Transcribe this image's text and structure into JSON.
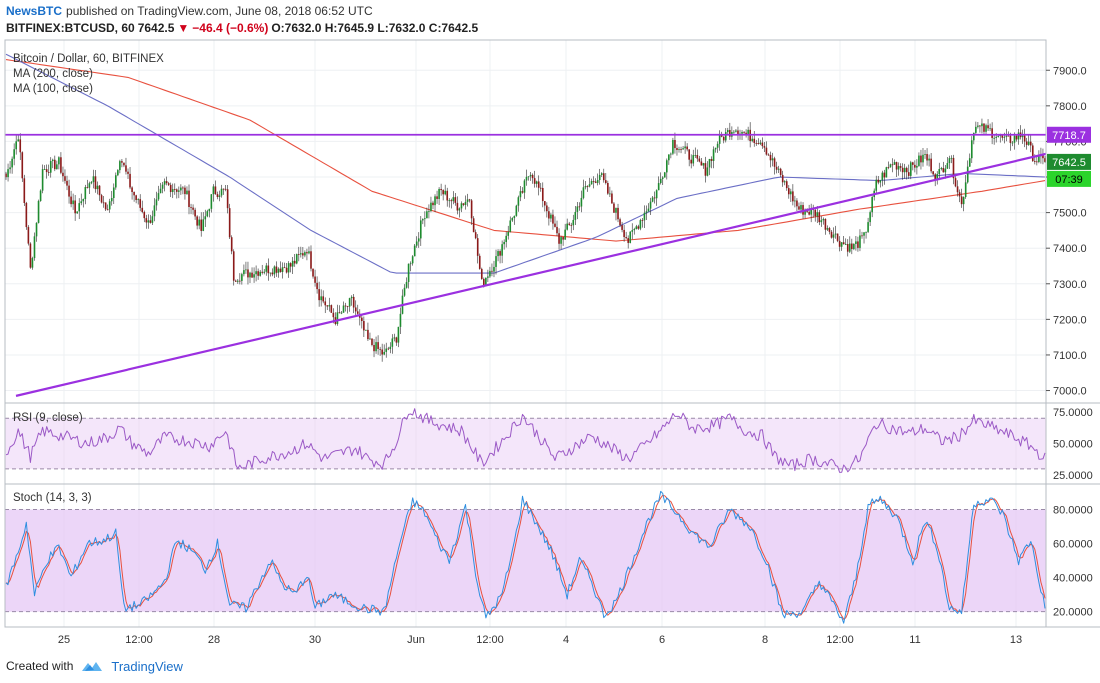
{
  "header": {
    "publisher": "NewsBTC",
    "published_text": "published on TradingView.com, June 08, 2018 06:52 UTC",
    "symbol": "BITFINEX:BTCUSD, 60",
    "last": "7642.5",
    "arrow": "▼",
    "change": "−46.4 (−0.6%)",
    "ohlc": "O:7632.0 H:7645.9 L:7632.0 C:7642.5"
  },
  "legend": {
    "main": "Bitcoin / Dollar, 60, BITFINEX",
    "ma200": "MA (200, close)",
    "ma100": "MA (100, close)",
    "rsi": "RSI (9, close)",
    "stoch": "Stoch (14, 3, 3)"
  },
  "price_tags": {
    "resistance": "7718.7",
    "last": "7642.5",
    "countdown": "07:39"
  },
  "footer": {
    "created": "Created with",
    "brand": "TradingView"
  },
  "colors": {
    "bull": "#1e8b2f",
    "bear": "#8b1a1a",
    "ma200": "#e8513f",
    "ma100": "#6b6fc6",
    "trend": "#9b30e0",
    "rsi": "#9b59c6",
    "stoch_k": "#2f8fe0",
    "stoch_d": "#e8513f",
    "band": "#e6c8f5"
  },
  "chart_data": {
    "type": "candlestick",
    "timeframe": "60",
    "x_ticks": [
      "25",
      "12:00",
      "28",
      "30",
      "Jun",
      "12:00",
      "4",
      "6",
      "8",
      "12:00",
      "11",
      "13"
    ],
    "price_axis": {
      "ticks": [
        7000,
        7100,
        7200,
        7300,
        7400,
        7500,
        7600,
        7700,
        7800,
        7900
      ],
      "ylim": [
        6965,
        7985
      ]
    },
    "resistance_level": 7718.7,
    "trend_line": {
      "from_price": 6985,
      "to_price": 7665
    },
    "anchors_close": [
      [
        0,
        7600
      ],
      [
        6,
        7720
      ],
      [
        12,
        7340
      ],
      [
        18,
        7620
      ],
      [
        26,
        7640
      ],
      [
        34,
        7500
      ],
      [
        42,
        7600
      ],
      [
        50,
        7500
      ],
      [
        56,
        7660
      ],
      [
        62,
        7560
      ],
      [
        70,
        7470
      ],
      [
        78,
        7580
      ],
      [
        88,
        7560
      ],
      [
        96,
        7450
      ],
      [
        102,
        7560
      ],
      [
        108,
        7560
      ],
      [
        112,
        7320
      ],
      [
        126,
        7340
      ],
      [
        140,
        7350
      ],
      [
        148,
        7400
      ],
      [
        154,
        7270
      ],
      [
        162,
        7200
      ],
      [
        170,
        7250
      ],
      [
        178,
        7140
      ],
      [
        186,
        7100
      ],
      [
        192,
        7150
      ],
      [
        198,
        7350
      ],
      [
        206,
        7500
      ],
      [
        214,
        7560
      ],
      [
        222,
        7520
      ],
      [
        228,
        7540
      ],
      [
        234,
        7300
      ],
      [
        242,
        7380
      ],
      [
        250,
        7500
      ],
      [
        258,
        7620
      ],
      [
        264,
        7540
      ],
      [
        272,
        7420
      ],
      [
        278,
        7470
      ],
      [
        284,
        7560
      ],
      [
        292,
        7610
      ],
      [
        300,
        7500
      ],
      [
        306,
        7420
      ],
      [
        312,
        7480
      ],
      [
        320,
        7560
      ],
      [
        328,
        7700
      ],
      [
        336,
        7660
      ],
      [
        344,
        7620
      ],
      [
        350,
        7700
      ],
      [
        358,
        7740
      ],
      [
        364,
        7720
      ],
      [
        372,
        7700
      ],
      [
        378,
        7630
      ],
      [
        384,
        7570
      ],
      [
        390,
        7510
      ],
      [
        398,
        7500
      ],
      [
        404,
        7460
      ],
      [
        410,
        7420
      ],
      [
        416,
        7400
      ],
      [
        422,
        7430
      ],
      [
        428,
        7580
      ],
      [
        436,
        7640
      ],
      [
        444,
        7620
      ],
      [
        452,
        7660
      ],
      [
        458,
        7600
      ],
      [
        464,
        7660
      ],
      [
        470,
        7520
      ],
      [
        476,
        7740
      ],
      [
        484,
        7730
      ],
      [
        492,
        7700
      ],
      [
        500,
        7720
      ],
      [
        506,
        7650
      ],
      [
        511,
        7642.5
      ]
    ],
    "ma200_path": [
      [
        0,
        7930
      ],
      [
        60,
        7880
      ],
      [
        120,
        7760
      ],
      [
        180,
        7560
      ],
      [
        240,
        7450
      ],
      [
        300,
        7420
      ],
      [
        360,
        7450
      ],
      [
        420,
        7510
      ],
      [
        480,
        7560
      ],
      [
        511,
        7590
      ]
    ],
    "ma100_path": [
      [
        0,
        7945
      ],
      [
        50,
        7800
      ],
      [
        110,
        7600
      ],
      [
        150,
        7450
      ],
      [
        190,
        7330
      ],
      [
        240,
        7330
      ],
      [
        290,
        7430
      ],
      [
        330,
        7540
      ],
      [
        380,
        7600
      ],
      [
        430,
        7590
      ],
      [
        470,
        7610
      ],
      [
        511,
        7600
      ]
    ],
    "rsi": {
      "ticks": [
        25,
        50,
        75
      ],
      "ylim": [
        18,
        82
      ],
      "band": [
        30,
        70
      ],
      "anchors": [
        [
          0,
          42
        ],
        [
          6,
          60
        ],
        [
          12,
          40
        ],
        [
          18,
          60
        ],
        [
          30,
          55
        ],
        [
          40,
          50
        ],
        [
          50,
          55
        ],
        [
          56,
          62
        ],
        [
          62,
          50
        ],
        [
          70,
          42
        ],
        [
          78,
          55
        ],
        [
          90,
          52
        ],
        [
          100,
          48
        ],
        [
          108,
          60
        ],
        [
          114,
          30
        ],
        [
          126,
          38
        ],
        [
          140,
          44
        ],
        [
          148,
          50
        ],
        [
          156,
          38
        ],
        [
          164,
          42
        ],
        [
          172,
          46
        ],
        [
          178,
          38
        ],
        [
          186,
          34
        ],
        [
          192,
          52
        ],
        [
          198,
          78
        ],
        [
          208,
          68
        ],
        [
          216,
          64
        ],
        [
          224,
          60
        ],
        [
          234,
          34
        ],
        [
          244,
          52
        ],
        [
          254,
          72
        ],
        [
          262,
          56
        ],
        [
          270,
          38
        ],
        [
          280,
          48
        ],
        [
          288,
          56
        ],
        [
          296,
          48
        ],
        [
          306,
          38
        ],
        [
          314,
          48
        ],
        [
          322,
          60
        ],
        [
          330,
          74
        ],
        [
          338,
          62
        ],
        [
          348,
          64
        ],
        [
          356,
          70
        ],
        [
          364,
          60
        ],
        [
          372,
          56
        ],
        [
          378,
          40
        ],
        [
          386,
          32
        ],
        [
          396,
          38
        ],
        [
          404,
          34
        ],
        [
          412,
          30
        ],
        [
          420,
          38
        ],
        [
          428,
          66
        ],
        [
          436,
          62
        ],
        [
          444,
          58
        ],
        [
          452,
          62
        ],
        [
          460,
          52
        ],
        [
          468,
          55
        ],
        [
          476,
          68
        ],
        [
          486,
          62
        ],
        [
          496,
          55
        ],
        [
          504,
          48
        ],
        [
          511,
          38
        ]
      ]
    },
    "stoch": {
      "ticks": [
        20,
        40,
        60,
        80
      ],
      "ylim": [
        11,
        95
      ],
      "band": [
        20,
        80
      ],
      "anchors": [
        [
          0,
          35
        ],
        [
          6,
          55
        ],
        [
          10,
          72
        ],
        [
          14,
          30
        ],
        [
          20,
          50
        ],
        [
          26,
          58
        ],
        [
          32,
          40
        ],
        [
          40,
          60
        ],
        [
          48,
          62
        ],
        [
          54,
          66
        ],
        [
          58,
          22
        ],
        [
          66,
          24
        ],
        [
          72,
          30
        ],
        [
          78,
          38
        ],
        [
          84,
          62
        ],
        [
          92,
          55
        ],
        [
          98,
          45
        ],
        [
          104,
          60
        ],
        [
          110,
          24
        ],
        [
          118,
          22
        ],
        [
          124,
          36
        ],
        [
          130,
          50
        ],
        [
          136,
          36
        ],
        [
          142,
          30
        ],
        [
          148,
          42
        ],
        [
          152,
          22
        ],
        [
          160,
          30
        ],
        [
          168,
          26
        ],
        [
          176,
          22
        ],
        [
          186,
          20
        ],
        [
          194,
          62
        ],
        [
          200,
          85
        ],
        [
          206,
          78
        ],
        [
          212,
          62
        ],
        [
          218,
          50
        ],
        [
          226,
          82
        ],
        [
          232,
          36
        ],
        [
          236,
          16
        ],
        [
          244,
          30
        ],
        [
          250,
          60
        ],
        [
          254,
          86
        ],
        [
          260,
          74
        ],
        [
          268,
          56
        ],
        [
          276,
          30
        ],
        [
          282,
          50
        ],
        [
          288,
          38
        ],
        [
          294,
          18
        ],
        [
          300,
          26
        ],
        [
          308,
          50
        ],
        [
          316,
          74
        ],
        [
          322,
          88
        ],
        [
          330,
          78
        ],
        [
          338,
          66
        ],
        [
          346,
          58
        ],
        [
          356,
          80
        ],
        [
          366,
          70
        ],
        [
          374,
          50
        ],
        [
          382,
          18
        ],
        [
          392,
          20
        ],
        [
          400,
          38
        ],
        [
          406,
          26
        ],
        [
          412,
          14
        ],
        [
          418,
          40
        ],
        [
          424,
          82
        ],
        [
          430,
          86
        ],
        [
          438,
          76
        ],
        [
          446,
          50
        ],
        [
          452,
          74
        ],
        [
          458,
          58
        ],
        [
          464,
          22
        ],
        [
          470,
          20
        ],
        [
          476,
          84
        ],
        [
          484,
          86
        ],
        [
          490,
          78
        ],
        [
          498,
          50
        ],
        [
          504,
          62
        ],
        [
          511,
          22
        ]
      ]
    }
  }
}
